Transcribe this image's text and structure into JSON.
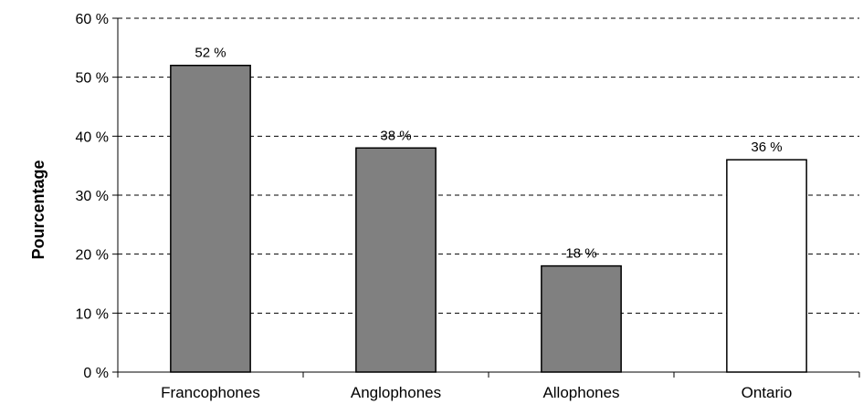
{
  "chart_data": {
    "type": "bar",
    "categories": [
      "Francophones",
      "Anglophones",
      "Allophones",
      "Ontario"
    ],
    "values": [
      52,
      38,
      18,
      36
    ],
    "data_labels": [
      "52 %",
      "38 %",
      "18 %",
      "36 %"
    ],
    "bar_colors": [
      "#808080",
      "#808080",
      "#808080",
      "#ffffff"
    ],
    "title": "",
    "xlabel": "",
    "ylabel": "Pourcentage",
    "ylim": [
      0,
      60
    ],
    "yticks": [
      0,
      10,
      20,
      30,
      40,
      50,
      60
    ],
    "ytick_labels": [
      "0 %",
      "10 %",
      "20 %",
      "30 %",
      "40 %",
      "50 %",
      "60 %"
    ],
    "grid": "dashed horizontal",
    "legend": "none"
  }
}
